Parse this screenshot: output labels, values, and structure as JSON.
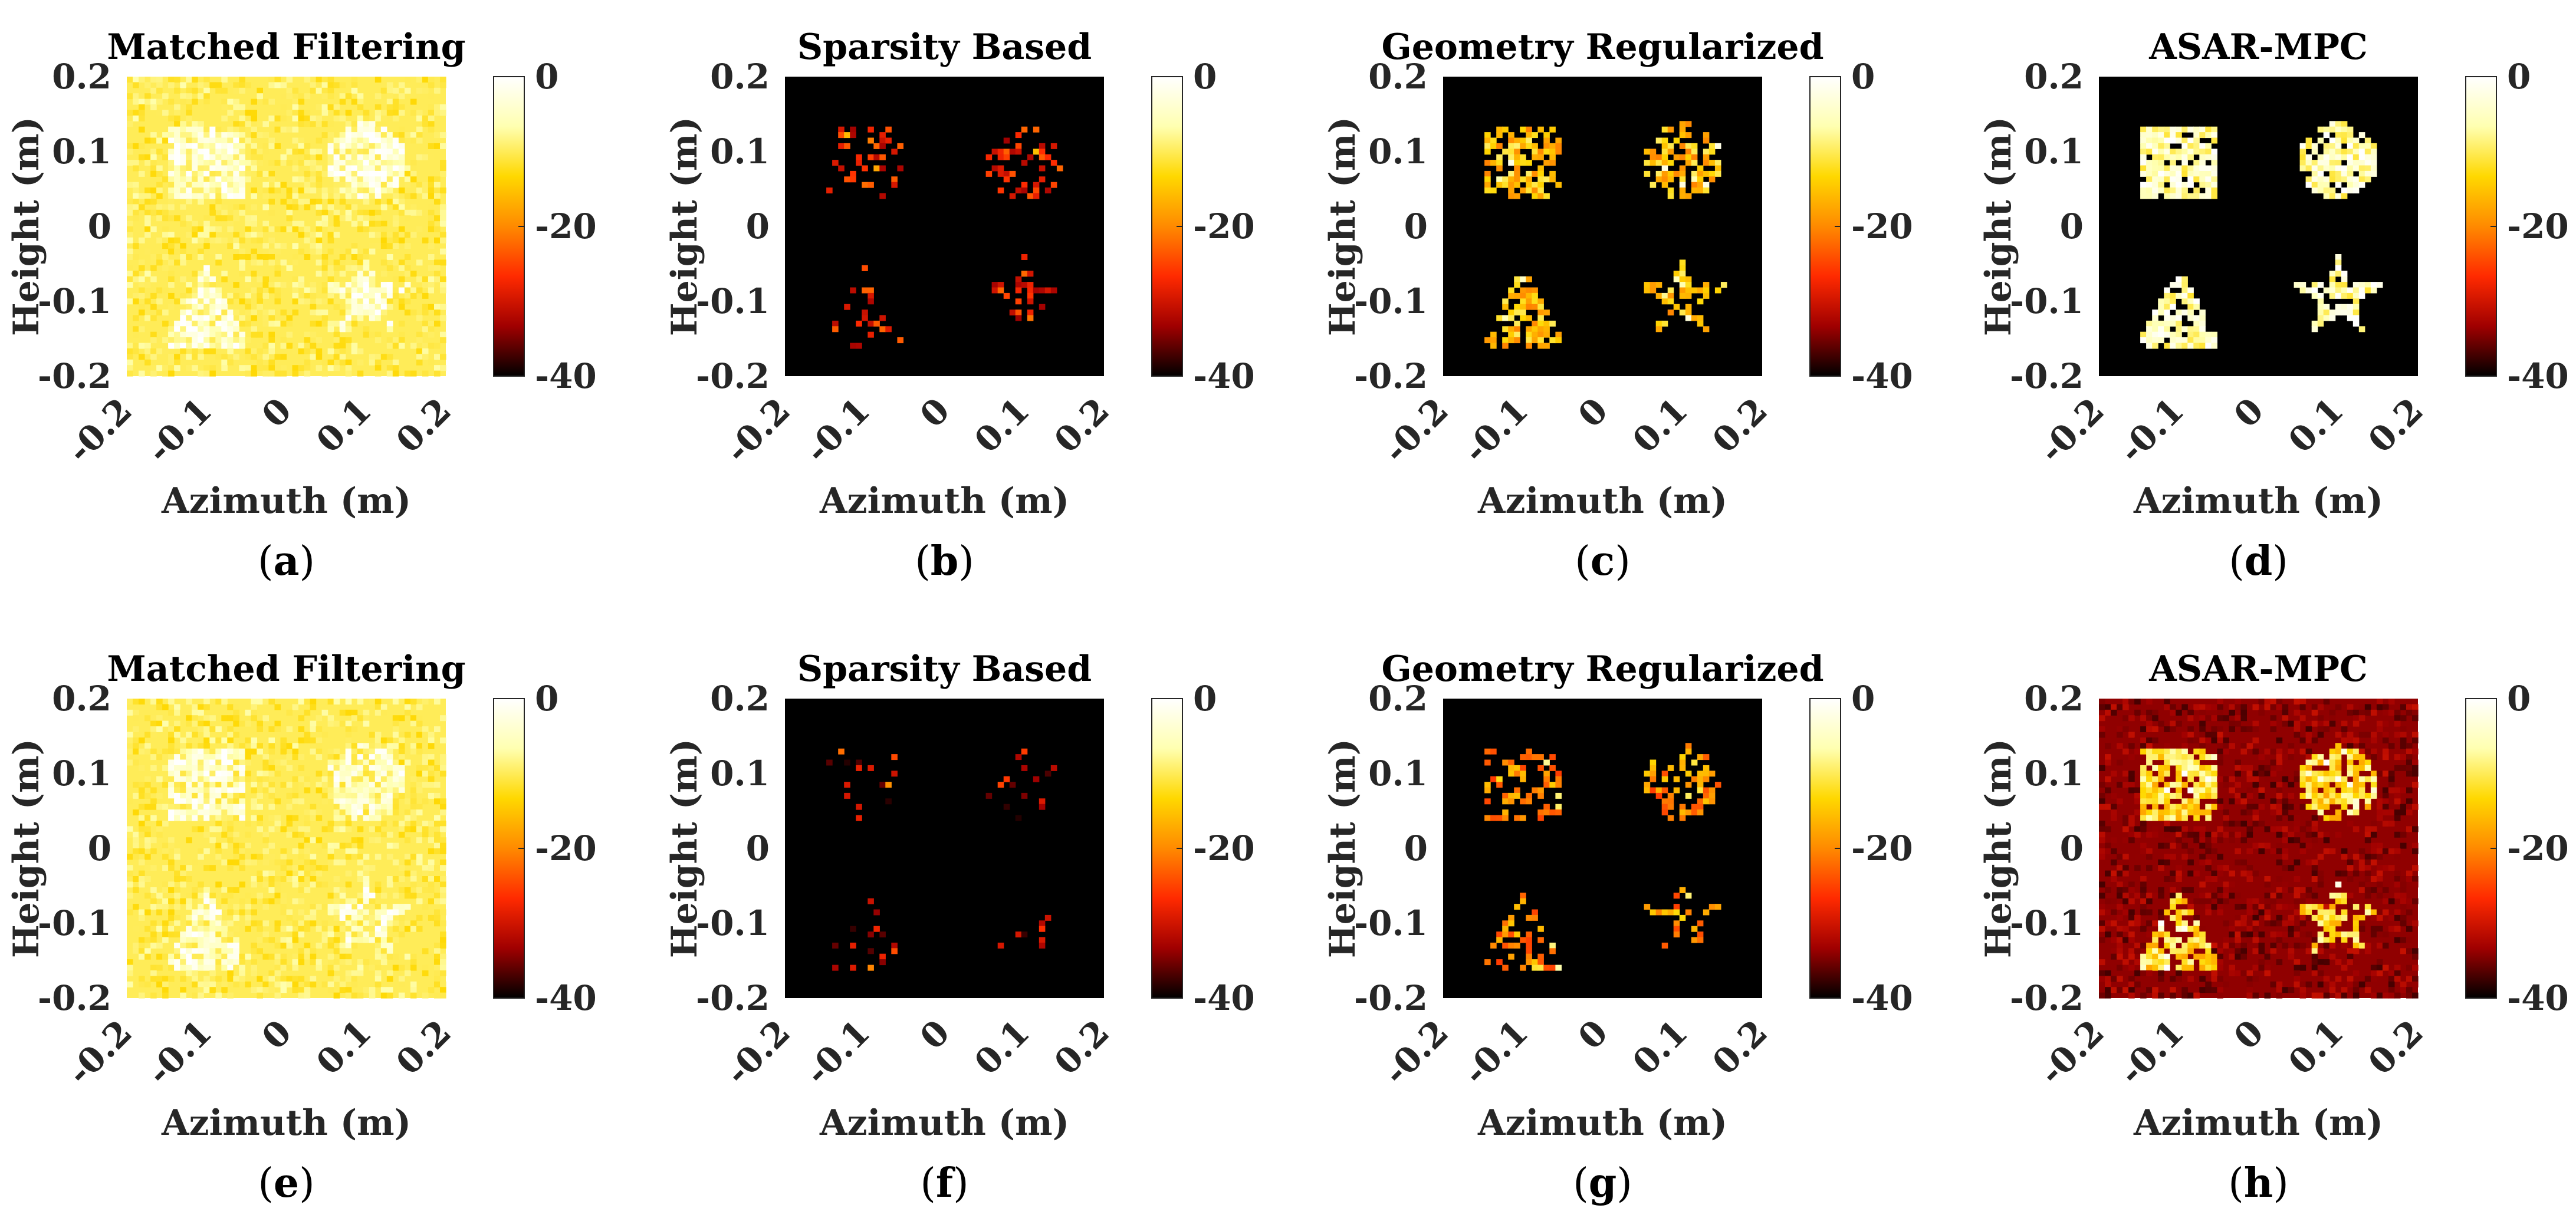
{
  "chart_data": [
    {
      "panel": "(a)",
      "type": "heatmap",
      "title": "Matched Filtering",
      "xlabel": "Azimuth (m)",
      "ylabel": "Height (m)",
      "xlim": [
        -0.2,
        0.2
      ],
      "ylim": [
        -0.2,
        0.2
      ],
      "x_ticks": [
        "-0.2",
        "-0.1",
        "0",
        "0.1",
        "0.2"
      ],
      "y_ticks": [
        "0.2",
        "0.1",
        "0",
        "-0.1",
        "-0.2"
      ],
      "colorbar": {
        "ticks": [
          "0",
          "-20",
          "-40"
        ],
        "range_db": [
          -40,
          0
        ]
      },
      "targets": [
        "square",
        "circle",
        "triangle",
        "star"
      ],
      "background_db": -10,
      "target_db": -5,
      "density": 1.0,
      "caption_label": "a"
    },
    {
      "panel": "(b)",
      "type": "heatmap",
      "title": "Sparsity Based",
      "xlabel": "Azimuth (m)",
      "ylabel": "Height (m)",
      "xlim": [
        -0.2,
        0.2
      ],
      "ylim": [
        -0.2,
        0.2
      ],
      "x_ticks": [
        "-0.2",
        "-0.1",
        "0",
        "0.1",
        "0.2"
      ],
      "y_ticks": [
        "0.2",
        "0.1",
        "0",
        "-0.1",
        "-0.2"
      ],
      "colorbar": {
        "ticks": [
          "0",
          "-20",
          "-40"
        ],
        "range_db": [
          -40,
          0
        ]
      },
      "targets": [
        "square",
        "circle",
        "triangle",
        "star"
      ],
      "background_db": -40,
      "target_db": -28,
      "density": 0.25,
      "caption_label": "b"
    },
    {
      "panel": "(c)",
      "type": "heatmap",
      "title": "Geometry Regularized",
      "xlabel": "Azimuth (m)",
      "ylabel": "Height (m)",
      "xlim": [
        -0.2,
        0.2
      ],
      "ylim": [
        -0.2,
        0.2
      ],
      "x_ticks": [
        "-0.2",
        "-0.1",
        "0",
        "0.1",
        "0.2"
      ],
      "y_ticks": [
        "0.2",
        "0.1",
        "0",
        "-0.1",
        "-0.2"
      ],
      "colorbar": {
        "ticks": [
          "0",
          "-20",
          "-40"
        ],
        "range_db": [
          -40,
          0
        ]
      },
      "targets": [
        "square",
        "circle",
        "triangle",
        "star"
      ],
      "background_db": -40,
      "target_db": -15,
      "density": 0.6,
      "caption_label": "c"
    },
    {
      "panel": "(d)",
      "type": "heatmap",
      "title": "ASAR-MPC",
      "xlabel": "Azimuth (m)",
      "ylabel": "Height (m)",
      "xlim": [
        -0.2,
        0.2
      ],
      "ylim": [
        -0.2,
        0.2
      ],
      "x_ticks": [
        "-0.2",
        "-0.1",
        "0",
        "0.1",
        "0.2"
      ],
      "y_ticks": [
        "0.2",
        "0.1",
        "0",
        "-0.1",
        "-0.2"
      ],
      "colorbar": {
        "ticks": [
          "0",
          "-20",
          "-40"
        ],
        "range_db": [
          -40,
          0
        ]
      },
      "targets": [
        "square",
        "circle",
        "triangle",
        "star"
      ],
      "background_db": -40,
      "target_db": -6,
      "density": 0.85,
      "caption_label": "d"
    },
    {
      "panel": "(e)",
      "type": "heatmap",
      "title": "Matched Filtering",
      "xlabel": "Azimuth (m)",
      "ylabel": "Height (m)",
      "xlim": [
        -0.2,
        0.2
      ],
      "ylim": [
        -0.2,
        0.2
      ],
      "x_ticks": [
        "-0.2",
        "-0.1",
        "0",
        "0.1",
        "0.2"
      ],
      "y_ticks": [
        "0.2",
        "0.1",
        "0",
        "-0.1",
        "-0.2"
      ],
      "colorbar": {
        "ticks": [
          "0",
          "-20",
          "-40"
        ],
        "range_db": [
          -40,
          0
        ]
      },
      "targets": [
        "square",
        "circle",
        "triangle",
        "star"
      ],
      "background_db": -10,
      "target_db": -6,
      "density": 1.0,
      "caption_label": "e"
    },
    {
      "panel": "(f)",
      "type": "heatmap",
      "title": "Sparsity Based",
      "xlabel": "Azimuth (m)",
      "ylabel": "Height (m)",
      "xlim": [
        -0.2,
        0.2
      ],
      "ylim": [
        -0.2,
        0.2
      ],
      "x_ticks": [
        "-0.2",
        "-0.1",
        "0",
        "0.1",
        "0.2"
      ],
      "y_ticks": [
        "0.2",
        "0.1",
        "0",
        "-0.1",
        "-0.2"
      ],
      "colorbar": {
        "ticks": [
          "0",
          "-20",
          "-40"
        ],
        "range_db": [
          -40,
          0
        ]
      },
      "targets": [
        "square",
        "circle",
        "triangle",
        "star"
      ],
      "background_db": -40,
      "target_db": -33,
      "density": 0.1,
      "caption_label": "f"
    },
    {
      "panel": "(g)",
      "type": "heatmap",
      "title": "Geometry Regularized",
      "xlabel": "Azimuth (m)",
      "ylabel": "Height (m)",
      "xlim": [
        -0.2,
        0.2
      ],
      "ylim": [
        -0.2,
        0.2
      ],
      "x_ticks": [
        "-0.2",
        "-0.1",
        "0",
        "0.1",
        "0.2"
      ],
      "y_ticks": [
        "0.2",
        "0.1",
        "0",
        "-0.1",
        "-0.2"
      ],
      "colorbar": {
        "ticks": [
          "0",
          "-20",
          "-40"
        ],
        "range_db": [
          -40,
          0
        ]
      },
      "targets": [
        "square",
        "circle",
        "triangle",
        "star"
      ],
      "background_db": -40,
      "target_db": -20,
      "density": 0.35,
      "caption_label": "g"
    },
    {
      "panel": "(h)",
      "type": "heatmap",
      "title": "ASAR-MPC",
      "xlabel": "Azimuth (m)",
      "ylabel": "Height (m)",
      "xlim": [
        -0.2,
        0.2
      ],
      "ylim": [
        -0.2,
        0.2
      ],
      "x_ticks": [
        "-0.2",
        "-0.1",
        "0",
        "0.1",
        "0.2"
      ],
      "y_ticks": [
        "0.2",
        "0.1",
        "0",
        "-0.1",
        "-0.2"
      ],
      "colorbar": {
        "ticks": [
          "0",
          "-20",
          "-40"
        ],
        "range_db": [
          -40,
          0
        ]
      },
      "targets": [
        "square",
        "circle",
        "triangle",
        "star"
      ],
      "background_db": -34,
      "target_db": -12,
      "density": 0.75,
      "caption_label": "h"
    }
  ],
  "colormap": {
    "name": "hot",
    "stops": [
      "#000000",
      "#a00000",
      "#ff2a00",
      "#ff8a00",
      "#ffd800",
      "#ffffb0",
      "#ffffff"
    ]
  }
}
